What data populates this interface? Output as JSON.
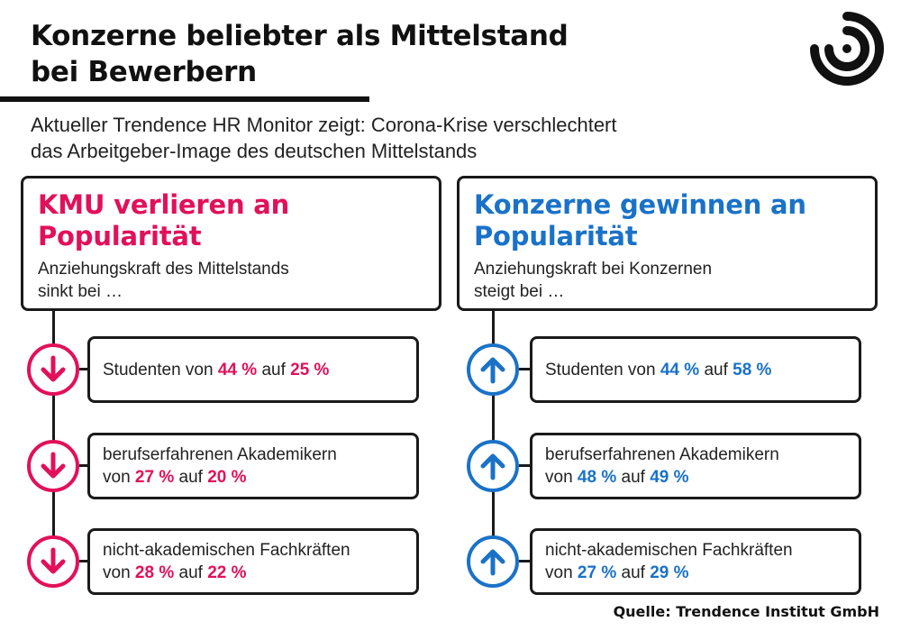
{
  "title": {
    "line1": "Konzerne beliebter als Mittelstand",
    "line2": "bei Bewerbern"
  },
  "subtitle": {
    "line1": "Aktueller Trendence HR Monitor zeigt: Corona-Krise verschlechtert",
    "line2": "das Arbeitgeber-Image des deutschen Mittelstands"
  },
  "colors": {
    "decline": "#e2105a",
    "increase": "#1a72c8",
    "text": "#1a1a1a"
  },
  "left": {
    "heading": {
      "line1": "KMU verlieren an",
      "line2": "Popularität"
    },
    "desc": {
      "line1": "Anziehungskraft des Mittelstands",
      "line2": "sinkt bei …"
    },
    "icon": "arrow-down-icon",
    "items": [
      {
        "group": "Studenten",
        "from_word": "von",
        "from": "44 %",
        "to_word": "auf",
        "to": "25 %"
      },
      {
        "group": "berufserfahrenen Akademikern",
        "from_word": "von",
        "from": "27 %",
        "to_word": "auf",
        "to": "20 %"
      },
      {
        "group": "nicht-akademischen Fachkräften",
        "from_word": "von",
        "from": "28 %",
        "to_word": "auf",
        "to": "22 %"
      }
    ]
  },
  "right": {
    "heading": {
      "line1": "Konzerne gewinnen an",
      "line2": "Popularität"
    },
    "desc": {
      "line1": "Anziehungskraft bei Konzernen",
      "line2": "steigt bei …"
    },
    "icon": "arrow-up-icon",
    "items": [
      {
        "group": "Studenten",
        "from_word": "von",
        "from": "44 %",
        "to_word": "auf",
        "to": "58 %"
      },
      {
        "group": "berufserfahrenen Akademikern",
        "from_word": "von",
        "from": "48 %",
        "to_word": "auf",
        "to": "49 %"
      },
      {
        "group": "nicht-akademischen Fachkräften",
        "from_word": "von",
        "from": "27 %",
        "to_word": "auf",
        "to": "29 %"
      }
    ]
  },
  "source": "Quelle: Trendence Institut GmbH"
}
